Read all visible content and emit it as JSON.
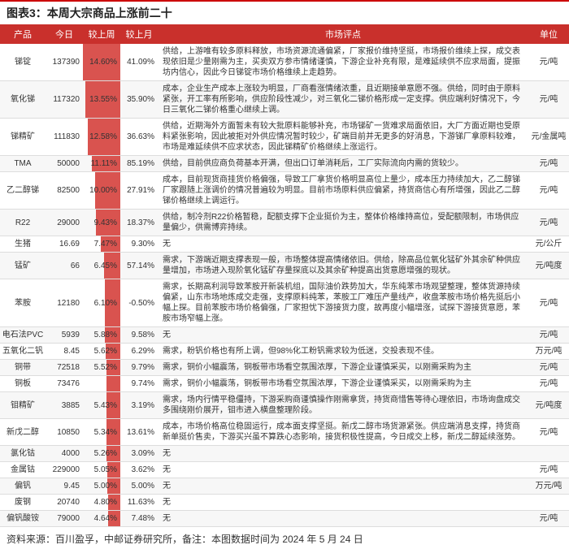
{
  "title": "图表3：本周大宗商品上涨前二十",
  "columns": [
    "产品",
    "今日",
    "较上周",
    "较上月",
    "市场评点",
    "单位"
  ],
  "barColor": "#d9534f",
  "headerBg": "#c9302c",
  "maxWow": 14.6,
  "rows": [
    {
      "name": "锑锭",
      "today": "137390",
      "wow": "14.60%",
      "wowVal": 14.6,
      "mom": "41.09%",
      "review": "供给，上游唯有较多原料释放，市场资源流通偏紧，厂家报价维持坚挺，市场报价维续上探，成交表现依旧是少量刚需为主，买卖双方参市情绪谨慎，下游企业补充有限，是难延续供不应求局面，提振坊内信心，因此今日锑锭市场价格维续上走趋势。",
      "unit": "元/吨"
    },
    {
      "name": "氧化锑",
      "today": "117320",
      "wow": "13.55%",
      "wowVal": 13.55,
      "mom": "35.90%",
      "review": "成本，企业生产成本上涨较为明显，厂商看涨情绪浓重，且近期接单意愿不强。供给，同时由于原料紧张，开工率有所影响，供应阶段性减少，对三氧化二锑价格形成一定支撑。供应端利好情况下，今日三氧化二锑价格重心继续上调。",
      "unit": "元/吨"
    },
    {
      "name": "锑精矿",
      "today": "111830",
      "wow": "12.58%",
      "wowVal": 12.58,
      "mom": "36.63%",
      "review": "供给，近期海外方面暂未有较大批原料能够补充，市场锑矿一货难求局面依旧，大厂方面近期也受原料紧张影响，因此被拒对外供应情况暂时较少，矿端目前并无更多的好消息，下游锑厂拿原料较难，市场是难延续供不应求状态，因此锑精矿价格继续上涨运行。",
      "unit": "元/金属吨"
    },
    {
      "name": "TMA",
      "today": "50000",
      "wow": "11.11%",
      "wowVal": 11.11,
      "mom": "85.19%",
      "review": "供给，目前供应商负荷基本开满，但出口订单消耗后，工厂实际流向内需的货较少。",
      "unit": "元/吨"
    },
    {
      "name": "乙二醇锑",
      "today": "82500",
      "wow": "10.00%",
      "wowVal": 10.0,
      "mom": "27.91%",
      "review": "成本，目前现货商挂货价格偏强，导致工厂拿货价格明显高位上量少，成本压力持续加大，乙二醇锑厂家跟随上涨调价的情况普遍较为明显。目前市场原料供应偏紧，持货商信心有所增强，因此乙二醇锑价格继续上调运行。",
      "unit": "元/吨"
    },
    {
      "name": "R22",
      "today": "29000",
      "wow": "9.43%",
      "wowVal": 9.43,
      "mom": "18.37%",
      "review": "供给，制冷剂R22价格暂稳，配额支撑下企业挺价为主，整体价格维持高位，受配额限制，市场供应量偏少，供需博弈持续。",
      "unit": "元/吨"
    },
    {
      "name": "生猪",
      "today": "16.69",
      "wow": "7.47%",
      "wowVal": 7.47,
      "mom": "9.30%",
      "review": "无",
      "unit": "元/公斤"
    },
    {
      "name": "锰矿",
      "today": "66",
      "wow": "6.45%",
      "wowVal": 6.45,
      "mom": "57.14%",
      "review": "需求，下游端近期支撑表现一般，市场整体提高情绪依旧。供给，除高品位氧化锰矿外其余矿种供应量增加，市场进入现阶氧化锰矿存量探底以及其余矿种提高出货意愿增强的现状。",
      "unit": "元/吨度"
    },
    {
      "name": "苯胺",
      "today": "12180",
      "wow": "6.10%",
      "wowVal": 6.1,
      "mom": "-0.50%",
      "review": "需求，长期高利润导致苯胺开新装机组，国际油价跌势加大，华东纯苯市场观望整理，整体货源持续偏紧，山东市场地炼成交走强，支撑原料纯苯，苯胺工厂难压产量线产，收盘苯胺市场价格先挺后小幅上探。目前苯胺市场价格偏强，厂家担忧下游接货力度，故再度小幅增涨，试探下游接货意愿，苯胺市场窄幅上涨。",
      "unit": "元/吨"
    },
    {
      "name": "电石法PVC",
      "today": "5939",
      "wow": "5.88%",
      "wowVal": 5.88,
      "mom": "9.58%",
      "review": "无",
      "unit": "元/吨"
    },
    {
      "name": "五氧化二钒",
      "today": "8.45",
      "wow": "5.62%",
      "wowVal": 5.62,
      "mom": "6.29%",
      "review": "需求，粉钒价格也有所上调，但98%化工粉钒需求较为低迷，交投表现不佳。",
      "unit": "万元/吨"
    },
    {
      "name": "铜带",
      "today": "72518",
      "wow": "5.52%",
      "wowVal": 5.52,
      "mom": "9.79%",
      "review": "需求，铜价小幅震荡，铜板带市场看空氛围浓厚，下游企业谨慎采买，以刚需采购为主",
      "unit": "元/吨"
    },
    {
      "name": "铜板",
      "today": "73476",
      "wow": "",
      "wowVal": 5.52,
      "mom": "9.74%",
      "review": "需求，铜价小幅震荡，铜板带市场看空氛围浓厚，下游企业谨慎采买，以刚需采购为主",
      "unit": "元/吨"
    },
    {
      "name": "钼精矿",
      "today": "3885",
      "wow": "5.43%",
      "wowVal": 5.43,
      "mom": "3.19%",
      "review": "需求，场内行情平稳僵持，下游采购商谨慎操作刚需拿货，持货商惜售等待心理依旧，市场询盘成交多围绕刚价展开，钼市进入横盘整理阶段。",
      "unit": "元/吨度"
    },
    {
      "name": "新戊二醇",
      "today": "10850",
      "wow": "5.34%",
      "wowVal": 5.34,
      "mom": "13.61%",
      "review": "成本，市场价格高位稳固运行，成本面支撑坚挺。新戊二醇市场货源紧张。供应端消息支撑，持货商新单挺价售卖，下游买兴虽不算跌心态影响，接货积极性提高，今日成交上移，新戊二醇延续涨势。",
      "unit": "元/吨"
    },
    {
      "name": "氯化钴",
      "today": "4000",
      "wow": "5.26%",
      "wowVal": 5.26,
      "mom": "3.09%",
      "review": "无",
      "unit": ""
    },
    {
      "name": "金属钴",
      "today": "229000",
      "wow": "5.05%",
      "wowVal": 5.05,
      "mom": "3.62%",
      "review": "无",
      "unit": "元/吨"
    },
    {
      "name": "偏钒",
      "today": "9.45",
      "wow": "5.00%",
      "wowVal": 5.0,
      "mom": "5.00%",
      "review": "无",
      "unit": "万元/吨"
    },
    {
      "name": "废钢",
      "today": "20740",
      "wow": "4.80%",
      "wowVal": 4.8,
      "mom": "11.63%",
      "review": "无",
      "unit": ""
    },
    {
      "name": "偏钒酸铵",
      "today": "79000",
      "wow": "4.64%",
      "wowVal": 4.64,
      "mom": "7.48%",
      "review": "无",
      "unit": "元/吨"
    }
  ],
  "footer": "资料来源：百川盈孚，中邮证券研究所，备注：本图数据时间为 2024 年 5 月 24 日"
}
